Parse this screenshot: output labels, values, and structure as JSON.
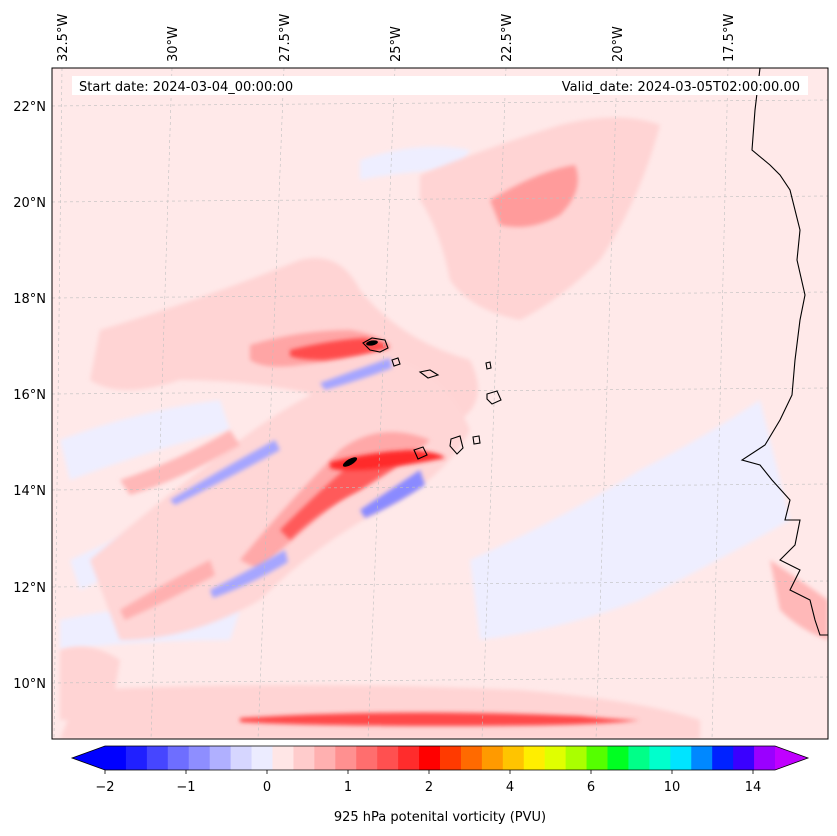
{
  "map": {
    "lon_labels": [
      "32.5°W",
      "30°W",
      "27.5°W",
      "25°W",
      "22.5°W",
      "20°W",
      "17.5°W"
    ],
    "lat_labels": [
      "22°N",
      "20°N",
      "18°N",
      "16°N",
      "14°N",
      "12°N",
      "10°N"
    ],
    "start_date": "Start date: 2024-03-04_00:00:00",
    "valid_date": "Valid_date: 2024-03-05T02:00:00.00",
    "gridlines": true,
    "coastline_color": "#000000"
  },
  "colorbar": {
    "label": "925 hPa potenital vorticity (PVU)",
    "tick_labels": [
      "−2",
      "−1",
      "0",
      "1",
      "2",
      "4",
      "6",
      "10",
      "14"
    ],
    "extend": "both",
    "colors": [
      "#0000ff",
      "#2020ff",
      "#4646ff",
      "#6e6eff",
      "#8e8eff",
      "#b0b0ff",
      "#d6d6ff",
      "#ececff",
      "#ffe6e6",
      "#ffcccc",
      "#ffb0b0",
      "#ff9090",
      "#ff6e6e",
      "#ff5050",
      "#ff2c2c",
      "#ff0000",
      "#ff3a00",
      "#ff6a00",
      "#ff9a00",
      "#ffc400",
      "#ffee00",
      "#e0ff00",
      "#aaff00",
      "#55ff00",
      "#00ff22",
      "#00ff88",
      "#00ffcc",
      "#00e4ff",
      "#0088ff",
      "#0022ff",
      "#3a00ff",
      "#9a00ff"
    ],
    "under_color": "#0000ff",
    "over_color": "#c000ff"
  }
}
